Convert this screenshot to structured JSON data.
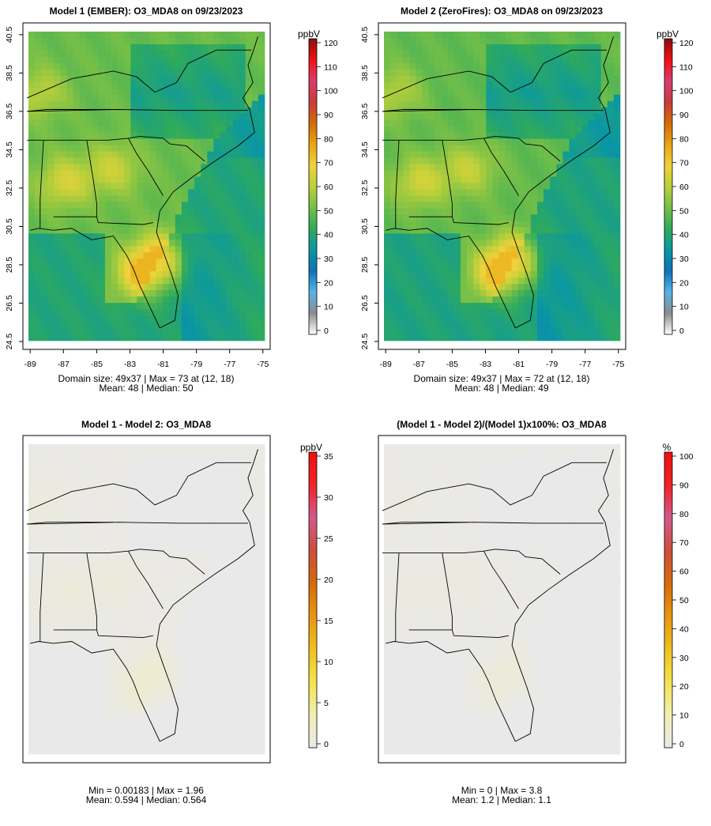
{
  "colors": {
    "background": "#ffffff",
    "frame": "#000000",
    "nodata_gray": "#e6e6e6",
    "conc_palette": [
      "#ffffff",
      "#8c8c8c",
      "#56b4e9",
      "#0e72b8",
      "#0a97a3",
      "#2faa5c",
      "#74bf48",
      "#bcd03a",
      "#efd23a",
      "#e9a313",
      "#d46b05",
      "#c83c3a",
      "#dc3b6f",
      "#f01012",
      "#8a0e0e"
    ],
    "diff_palette": [
      "#e9e9e9",
      "#f2eeb4",
      "#f5e34c",
      "#f0c01f",
      "#e89611",
      "#d86a0b",
      "#cc4f3a",
      "#d35a8a",
      "#ef2424",
      "#f00e0e"
    ]
  },
  "panels": [
    {
      "id": "model1",
      "title": "Model 1 (EMBER): O3_MDA8 on 09/23/2023",
      "stats_line1": "Domain size: 49x37 | Max = 73 at (12, 18)",
      "stats_line2": "Mean: 48 |  Median: 50",
      "colorbar_unit": "ppbV",
      "colorbar_ticks": [
        "0",
        "10",
        "20",
        "30",
        "40",
        "50",
        "60",
        "70",
        "80",
        "90",
        "100",
        "110",
        "120"
      ]
    },
    {
      "id": "model2",
      "title": "Model 2 (ZeroFires): O3_MDA8 on 09/23/2023",
      "stats_line1": "Domain size: 49x37 | Max = 72 at (12, 18)",
      "stats_line2": "Mean: 48 |  Median: 49",
      "colorbar_unit": "ppbV",
      "colorbar_ticks": [
        "0",
        "10",
        "20",
        "30",
        "40",
        "50",
        "60",
        "70",
        "80",
        "90",
        "100",
        "110",
        "120"
      ]
    },
    {
      "id": "diff",
      "title": "Model 1 - Model 2: O3_MDA8",
      "stats_line1": "Min = 0.00183 | Max = 1.96",
      "stats_line2": "Mean: 0.594 |  Median: 0.564",
      "colorbar_unit": "ppbV",
      "colorbar_ticks": [
        "0",
        "5",
        "10",
        "15",
        "20",
        "25",
        "30",
        "35"
      ]
    },
    {
      "id": "pctdiff",
      "title": "(Model 1 - Model 2)/(Model 1)x100%: O3_MDA8",
      "stats_line1": "Min = 0 | Max = 3.8",
      "stats_line2": "Mean: 1.2 |  Median: 1.1",
      "colorbar_unit": "%",
      "colorbar_ticks": [
        "0",
        "10",
        "20",
        "30",
        "40",
        "50",
        "60",
        "70",
        "80",
        "90",
        "100"
      ]
    }
  ],
  "chart_data": {
    "type": "heatmap",
    "variable": "O3_MDA8",
    "date": "09/23/2023",
    "grid_cols": 37,
    "grid_rows": 49,
    "lon_ticks": [
      "-89",
      "-87",
      "-85",
      "-83",
      "-81",
      "-79",
      "-77",
      "-75"
    ],
    "lat_ticks": [
      "24.5",
      "26.5",
      "28.5",
      "30.5",
      "32.5",
      "34.5",
      "36.5",
      "38.5",
      "40.5"
    ],
    "lon_range": [
      -89.2,
      -74.8
    ],
    "lat_range": [
      24.5,
      40.7
    ],
    "concentration_scale": {
      "min": 0,
      "max": 120,
      "unit": "ppbV"
    },
    "difference_scale": {
      "min": 0,
      "max": 35,
      "unit": "ppbV"
    },
    "percent_scale": {
      "min": 0,
      "max": 100,
      "unit": "%"
    },
    "ozone_hotspots": [
      {
        "lon": -82.2,
        "lat": 28.0,
        "value": 73
      },
      {
        "lon": -81.0,
        "lat": 28.9,
        "value": 68
      },
      {
        "lon": -87.0,
        "lat": 32.8,
        "value": 64
      },
      {
        "lon": -84.0,
        "lat": 33.5,
        "value": 62
      },
      {
        "lon": -88.5,
        "lat": 37.5,
        "value": 60
      }
    ],
    "model1_summary": {
      "mean": 48,
      "median": 50,
      "max": 73,
      "max_cell": "(12, 18)"
    },
    "model2_summary": {
      "mean": 48,
      "median": 49,
      "max": 72,
      "max_cell": "(12, 18)"
    },
    "difference_summary": {
      "min": 0.00183,
      "max": 1.96,
      "mean": 0.594,
      "median": 0.564
    },
    "percent_difference_summary": {
      "min": 0,
      "max": 3.8,
      "mean": 1.2,
      "median": 1.1
    }
  }
}
